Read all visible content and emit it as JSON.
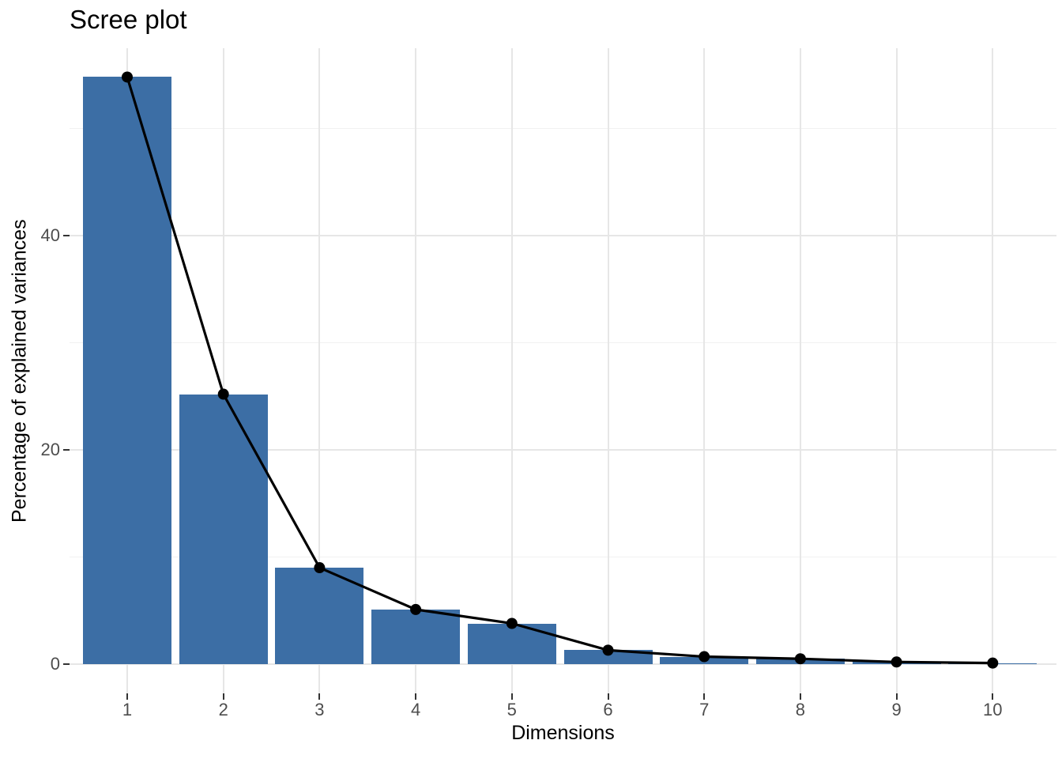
{
  "chart_data": {
    "type": "bar",
    "overlay": "line+point",
    "title": "Scree plot",
    "xlabel": "Dimensions",
    "ylabel": "Percentage of explained variances",
    "categories": [
      "1",
      "2",
      "3",
      "4",
      "5",
      "6",
      "7",
      "8",
      "9",
      "10"
    ],
    "values": [
      54.8,
      25.2,
      9.0,
      5.1,
      3.8,
      1.3,
      0.7,
      0.5,
      0.2,
      0.1
    ],
    "series": [
      {
        "name": "explained-variance-bars",
        "type": "bar",
        "values": [
          54.8,
          25.2,
          9.0,
          5.1,
          3.8,
          1.3,
          0.7,
          0.5,
          0.2,
          0.1
        ]
      },
      {
        "name": "explained-variance-line",
        "type": "line+point",
        "values": [
          54.8,
          25.2,
          9.0,
          5.1,
          3.8,
          1.3,
          0.7,
          0.5,
          0.2,
          0.1
        ]
      }
    ],
    "y_tick_labels": [
      "0",
      "20",
      "40"
    ],
    "y_ticks": [
      0,
      20,
      40
    ],
    "y_minor_gridlines": [
      10,
      30,
      50
    ],
    "ylim": [
      -2.7,
      57.6
    ],
    "grid": true,
    "legend": "none",
    "colors": {
      "bar_fill": "#3C6EA5",
      "line": "#000000",
      "point": "#000000",
      "grid_major": "#E6E6E6",
      "grid_minor": "#F1F1F1",
      "tick_mark": "#333333",
      "tick_label": "#4D4D4D",
      "title_text": "#000000",
      "background": "#FFFFFF"
    }
  }
}
